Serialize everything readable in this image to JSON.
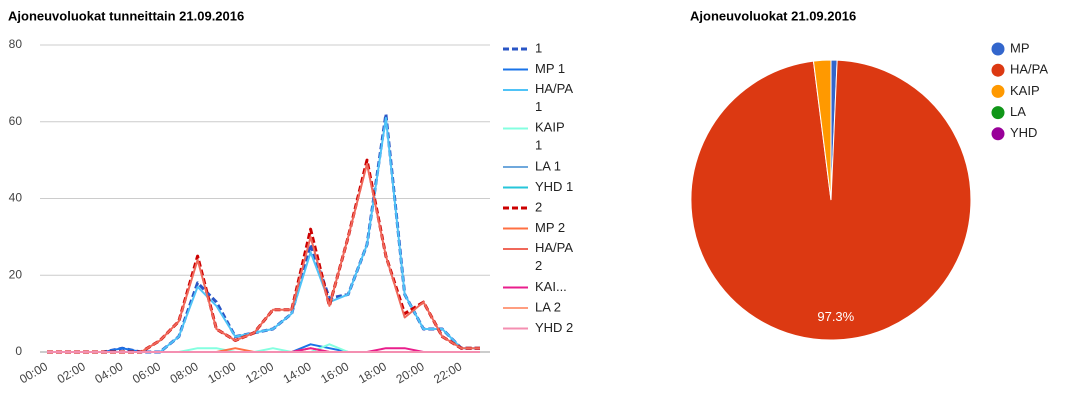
{
  "chart_data": [
    {
      "type": "line",
      "title": "Ajoneuvoluokat tunneittain 21.09.2016",
      "categories": [
        "00:00",
        null,
        "02:00",
        null,
        "04:00",
        null,
        "06:00",
        null,
        "08:00",
        null,
        "10:00",
        null,
        "12:00",
        null,
        "14:00",
        null,
        "16:00",
        null,
        "18:00",
        null,
        "20:00",
        null,
        "22:00",
        null
      ],
      "ylim": [
        0,
        80
      ],
      "yticks": [
        0,
        20,
        40,
        60,
        80
      ],
      "grid": true,
      "series": [
        {
          "name": "1",
          "color": "#2a56c6",
          "dashed": true,
          "values": [
            0,
            0,
            0,
            0,
            1,
            0,
            0,
            4,
            18,
            13,
            4,
            5,
            6,
            10,
            28,
            14,
            15,
            28,
            62,
            15,
            6,
            6,
            1,
            1
          ]
        },
        {
          "name": "MP 1",
          "color": "#1a73e8",
          "values": [
            0,
            0,
            0,
            0,
            1,
            0,
            0,
            0,
            0,
            0,
            0,
            0,
            0,
            0,
            2,
            1,
            0,
            0,
            0,
            0,
            0,
            0,
            0,
            0
          ]
        },
        {
          "name": "HA/PA 1",
          "color": "#4fc3f7",
          "values": [
            0,
            0,
            0,
            0,
            0,
            0,
            0,
            4,
            17,
            12,
            4,
            5,
            6,
            10,
            26,
            13,
            15,
            28,
            61,
            15,
            6,
            6,
            1,
            1
          ]
        },
        {
          "name": "KAIP 1",
          "color": "#84ffe0",
          "values": [
            0,
            0,
            0,
            0,
            0,
            0,
            0,
            0,
            1,
            1,
            0,
            0,
            1,
            0,
            0,
            2,
            0,
            0,
            0,
            0,
            0,
            0,
            0,
            0
          ]
        },
        {
          "name": "LA 1",
          "color": "#6fa8dc",
          "values": [
            0,
            0,
            0,
            0,
            0,
            0,
            0,
            0,
            0,
            0,
            0,
            0,
            0,
            0,
            0,
            0,
            0,
            0,
            0,
            0,
            0,
            0,
            0,
            0
          ]
        },
        {
          "name": "YHD 1",
          "color": "#26c6da",
          "values": [
            0,
            0,
            0,
            0,
            0,
            0,
            0,
            0,
            0,
            0,
            0,
            0,
            0,
            0,
            0,
            0,
            0,
            0,
            0,
            0,
            0,
            0,
            0,
            0
          ]
        },
        {
          "name": "2",
          "color": "#cc0000",
          "dashed": true,
          "values": [
            0,
            0,
            0,
            0,
            0,
            0,
            3,
            8,
            25,
            6,
            3,
            5,
            11,
            11,
            32,
            12,
            30,
            50,
            25,
            10,
            13,
            4,
            1,
            1
          ]
        },
        {
          "name": "MP 2",
          "color": "#ff7043",
          "values": [
            0,
            0,
            0,
            0,
            0,
            0,
            0,
            0,
            0,
            0,
            1,
            0,
            0,
            0,
            1,
            0,
            0,
            0,
            0,
            0,
            0,
            0,
            0,
            0
          ]
        },
        {
          "name": "HA/PA 2",
          "color": "#f0685a",
          "values": [
            0,
            0,
            0,
            0,
            0,
            0,
            3,
            8,
            24,
            6,
            3,
            5,
            11,
            11,
            30,
            12,
            30,
            49,
            25,
            9,
            13,
            4,
            1,
            1
          ]
        },
        {
          "name": "KAI...",
          "color": "#e91e8c",
          "values": [
            0,
            0,
            0,
            0,
            0,
            0,
            0,
            0,
            0,
            0,
            0,
            0,
            0,
            0,
            1,
            0,
            0,
            0,
            1,
            1,
            0,
            0,
            0,
            0
          ]
        },
        {
          "name": "LA 2",
          "color": "#ff9e80",
          "values": [
            0,
            0,
            0,
            0,
            0,
            0,
            0,
            0,
            0,
            0,
            0,
            0,
            0,
            0,
            0,
            0,
            0,
            0,
            0,
            0,
            0,
            0,
            0,
            0
          ]
        },
        {
          "name": "YHD 2",
          "color": "#f48fb1",
          "values": [
            0,
            0,
            0,
            0,
            0,
            0,
            0,
            0,
            0,
            0,
            0,
            0,
            0,
            0,
            0,
            0,
            0,
            0,
            0,
            0,
            0,
            0,
            0,
            0
          ]
        }
      ]
    },
    {
      "type": "pie",
      "title": "Ajoneuvoluokat 21.09.2016",
      "categories": [
        "MP",
        "HA/PA",
        "KAIP",
        "LA",
        "YHD"
      ],
      "values": [
        0.7,
        97.3,
        2.0,
        0,
        0
      ],
      "value_labels": [
        null,
        "97.3%",
        null,
        null,
        null
      ],
      "colors": [
        "#3366cc",
        "#dc3912",
        "#ff9900",
        "#109618",
        "#990099"
      ]
    }
  ]
}
